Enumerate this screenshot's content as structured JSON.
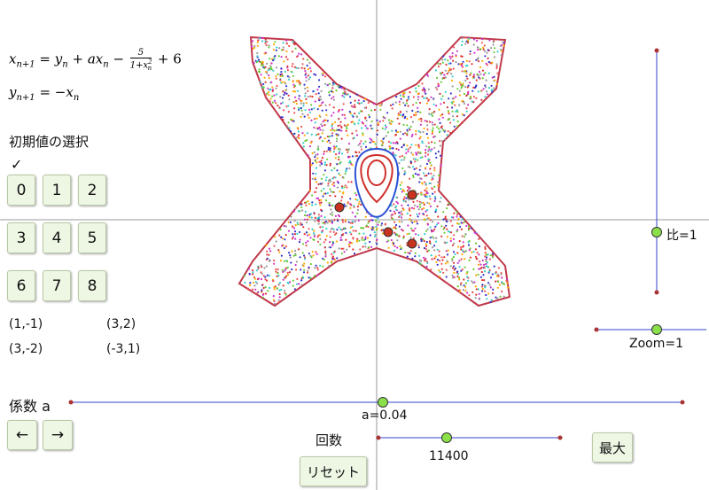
{
  "formulas": [
    {
      "parts": [
        {
          "text": "x",
          "sub": "n+1"
        },
        {
          "text": " = "
        },
        {
          "text": "y",
          "sub": "n"
        },
        {
          "text": " + "
        },
        {
          "text": "ax",
          "sub": "n"
        },
        {
          "text": " − "
        },
        {
          "num": "5",
          "den": "1+x",
          "den_sub": "n",
          "den_sup": "2"
        },
        {
          "text": " + 6"
        }
      ]
    },
    {
      "parts": [
        {
          "text": "y",
          "sub": "n+1"
        },
        {
          "text": " = −"
        },
        {
          "text": "x",
          "sub": "n"
        }
      ]
    }
  ],
  "initial_title": "初期値の選択",
  "check": "✓",
  "buttons": [
    "0",
    "1",
    "2",
    "3",
    "4",
    "5",
    "6",
    "7",
    "8"
  ],
  "coords": [
    "(1,-1)",
    "(3,2)",
    "(3,-2)",
    "(-3,1)"
  ],
  "coef_label": "係数 a",
  "arrows": [
    "←",
    "→"
  ],
  "a_slider": "a=0.04",
  "count_label": "回数",
  "count_slider": "11400",
  "reset": "リセット",
  "max": "最大",
  "ratio_slider": "比=1",
  "zoom_slider": "Zoom=1"
}
